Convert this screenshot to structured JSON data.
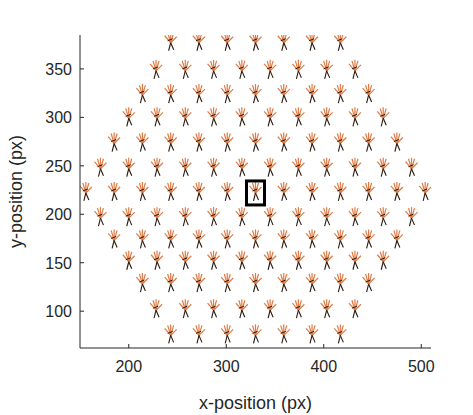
{
  "chart_data": {
    "type": "scatter",
    "marker": "skeleton",
    "color": "#e07b45",
    "x_label": "x-position (px)",
    "y_label": "y-position (px)",
    "xlim": [
      150,
      510
    ],
    "ylim": [
      62,
      385
    ],
    "xticks": [
      200,
      300,
      400,
      500
    ],
    "yticks": [
      100,
      150,
      200,
      250,
      300,
      350
    ],
    "grid": false,
    "highlight": {
      "x": 330,
      "y": 222
    },
    "x": [
      243,
      272,
      301,
      330,
      359,
      388,
      417,
      228,
      258,
      287,
      316,
      345,
      374,
      403,
      432,
      214,
      243,
      272,
      301,
      330,
      359,
      388,
      417,
      446,
      200,
      229,
      258,
      287,
      316,
      345,
      374,
      403,
      432,
      461,
      185,
      214,
      243,
      272,
      301,
      330,
      359,
      388,
      417,
      446,
      475,
      171,
      200,
      229,
      258,
      287,
      316,
      345,
      374,
      403,
      432,
      461,
      490,
      156,
      185,
      214,
      243,
      272,
      301,
      330,
      359,
      388,
      417,
      446,
      475,
      504,
      171,
      200,
      229,
      258,
      287,
      316,
      345,
      374,
      403,
      432,
      461,
      490,
      185,
      214,
      243,
      272,
      301,
      330,
      359,
      388,
      417,
      446,
      475,
      200,
      229,
      258,
      287,
      316,
      345,
      374,
      403,
      432,
      461,
      214,
      243,
      272,
      301,
      330,
      359,
      388,
      417,
      446,
      228,
      258,
      287,
      316,
      345,
      374,
      403,
      432,
      243,
      272,
      301,
      330,
      359,
      388,
      417
    ],
    "y": [
      377,
      377,
      377,
      377,
      377,
      377,
      377,
      348,
      348,
      348,
      348,
      348,
      348,
      348,
      348,
      323,
      323,
      323,
      323,
      323,
      323,
      323,
      323,
      323,
      299,
      299,
      299,
      299,
      299,
      299,
      299,
      299,
      299,
      299,
      273,
      273,
      273,
      273,
      273,
      273,
      273,
      273,
      273,
      273,
      273,
      247,
      247,
      247,
      247,
      247,
      247,
      247,
      247,
      247,
      247,
      247,
      247,
      222,
      222,
      222,
      222,
      222,
      222,
      222,
      222,
      222,
      222,
      222,
      222,
      222,
      196,
      196,
      196,
      196,
      196,
      196,
      196,
      196,
      196,
      196,
      196,
      196,
      173,
      173,
      173,
      173,
      173,
      173,
      173,
      173,
      173,
      173,
      173,
      151,
      151,
      151,
      151,
      151,
      151,
      151,
      151,
      151,
      151,
      128,
      128,
      128,
      128,
      128,
      128,
      128,
      128,
      128,
      101,
      101,
      101,
      101,
      101,
      101,
      101,
      101,
      75,
      75,
      75,
      75,
      75,
      75,
      75
    ]
  }
}
